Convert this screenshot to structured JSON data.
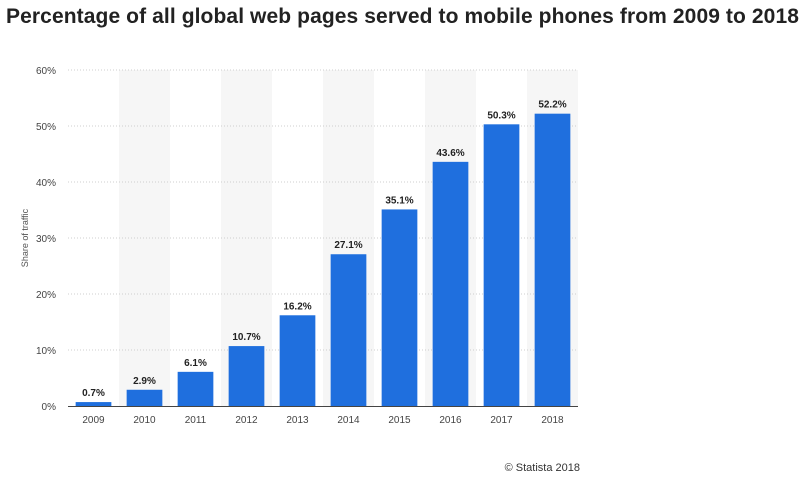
{
  "title": "Percentage of all global web pages served to mobile phones from 2009 to 2018",
  "credit": "© Statista 2018",
  "colors": {
    "bar": "#1f6fde",
    "band": "#f6f6f6",
    "grid": "#cfcfcf",
    "axis": "#444444",
    "label": "#222222"
  },
  "chart_data": {
    "type": "bar",
    "categories": [
      "2009",
      "2010",
      "2011",
      "2012",
      "2013",
      "2014",
      "2015",
      "2016",
      "2017",
      "2018"
    ],
    "values": [
      0.7,
      2.9,
      6.1,
      10.7,
      16.2,
      27.1,
      35.1,
      43.6,
      50.3,
      52.2
    ],
    "value_labels": [
      "0.7%",
      "2.9%",
      "6.1%",
      "10.7%",
      "16.2%",
      "27.1%",
      "35.1%",
      "43.6%",
      "50.3%",
      "52.2%"
    ],
    "ylabel": "Share of traffic",
    "xlabel": "",
    "ylim": [
      0,
      60
    ],
    "yticks": [
      0,
      10,
      20,
      30,
      40,
      50,
      60
    ],
    "ytick_labels": [
      "0%",
      "10%",
      "20%",
      "30%",
      "40%",
      "50%",
      "60%"
    ],
    "grid": true,
    "legend": "none"
  }
}
